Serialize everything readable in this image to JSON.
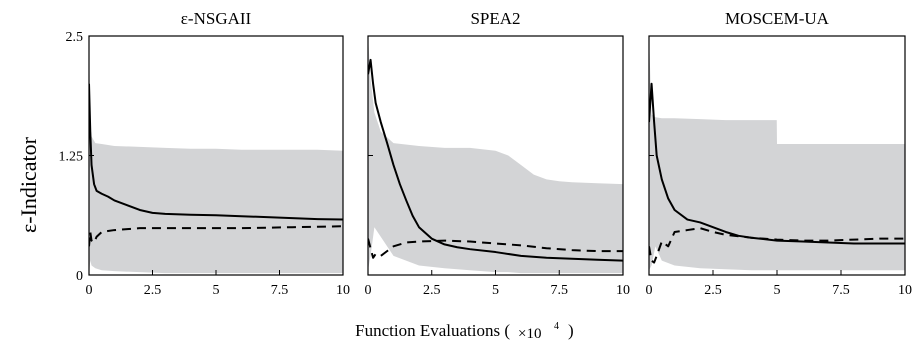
{
  "figure": {
    "ylabel": "ε-Indicator",
    "xlabel": "Function Evaluations (",
    "xlabel_multiplier": "×10",
    "xlabel_exponent": "4",
    "xlabel_close": ")"
  },
  "chart_data": [
    {
      "type": "line",
      "title": "ε-NSGAII",
      "xlim": [
        0,
        10
      ],
      "ylim": [
        0,
        2.5
      ],
      "xticks": [
        "0",
        "2.5",
        "5",
        "7.5",
        "10"
      ],
      "yticks": [
        "0",
        "1.25",
        "2.5"
      ],
      "series": [
        {
          "style": "solid",
          "x": [
            0,
            0.05,
            0.1,
            0.2,
            0.3,
            0.5,
            0.75,
            1,
            1.5,
            2,
            2.5,
            3,
            4,
            5,
            6,
            7,
            8,
            9,
            10
          ],
          "y": [
            2.0,
            1.5,
            1.15,
            0.95,
            0.88,
            0.85,
            0.82,
            0.78,
            0.73,
            0.68,
            0.65,
            0.64,
            0.63,
            0.625,
            0.615,
            0.605,
            0.595,
            0.585,
            0.58
          ]
        },
        {
          "style": "dashed",
          "x": [
            0,
            0.05,
            0.1,
            0.2,
            0.3,
            0.5,
            1,
            1.5,
            2,
            3,
            4,
            5,
            6,
            7,
            8,
            9,
            10
          ],
          "y": [
            0.3,
            0.45,
            0.36,
            0.34,
            0.4,
            0.45,
            0.47,
            0.48,
            0.49,
            0.49,
            0.49,
            0.49,
            0.49,
            0.495,
            0.5,
            0.505,
            0.51
          ]
        }
      ],
      "band": {
        "x": [
          0,
          0.05,
          0.1,
          0.25,
          0.5,
          1,
          2,
          3,
          4,
          5,
          6,
          7,
          8,
          9,
          10
        ],
        "upper": [
          2.5,
          1.6,
          1.45,
          1.38,
          1.37,
          1.35,
          1.34,
          1.33,
          1.32,
          1.32,
          1.31,
          1.31,
          1.31,
          1.31,
          1.3
        ],
        "lower": [
          0,
          0.15,
          0.1,
          0.07,
          0.05,
          0.04,
          0.03,
          0.02,
          0.02,
          0.02,
          0.02,
          0.02,
          0.02,
          0.02,
          0.02
        ]
      }
    },
    {
      "type": "line",
      "title": "SPEA2",
      "xlim": [
        0,
        10
      ],
      "ylim": [
        0,
        2.5
      ],
      "xticks": [
        "0",
        "2.5",
        "5",
        "7.5",
        "10"
      ],
      "yticks": [],
      "series": [
        {
          "style": "solid",
          "x": [
            0,
            0.1,
            0.2,
            0.3,
            0.5,
            0.75,
            1,
            1.25,
            1.5,
            1.75,
            2,
            2.5,
            3,
            3.5,
            4,
            5,
            6,
            7,
            8,
            9,
            10
          ],
          "y": [
            2.1,
            2.25,
            2.0,
            1.8,
            1.6,
            1.38,
            1.15,
            0.95,
            0.78,
            0.62,
            0.5,
            0.38,
            0.32,
            0.29,
            0.27,
            0.24,
            0.2,
            0.18,
            0.17,
            0.16,
            0.15
          ]
        },
        {
          "style": "dashed",
          "x": [
            0,
            0.1,
            0.2,
            0.3,
            0.5,
            1,
            1.5,
            2,
            3,
            4,
            5,
            6,
            7,
            8,
            9,
            10
          ],
          "y": [
            0.38,
            0.28,
            0.18,
            0.22,
            0.2,
            0.3,
            0.34,
            0.35,
            0.36,
            0.35,
            0.33,
            0.31,
            0.28,
            0.26,
            0.25,
            0.25
          ]
        }
      ],
      "band": {
        "x": [
          0,
          0.1,
          0.25,
          0.5,
          1,
          2,
          3,
          4,
          5,
          5.5,
          6,
          6.5,
          7,
          7.5,
          8,
          9,
          10
        ],
        "upper": [
          2.5,
          2.05,
          1.7,
          1.5,
          1.38,
          1.35,
          1.33,
          1.33,
          1.3,
          1.25,
          1.15,
          1.05,
          1.0,
          0.98,
          0.97,
          0.96,
          0.95
        ],
        "lower": [
          0.05,
          0.2,
          0.5,
          0.4,
          0.2,
          0.1,
          0.07,
          0.05,
          0.03,
          0.03,
          0.02,
          0.02,
          0.02,
          0.02,
          0.02,
          0.02,
          0.02
        ]
      }
    },
    {
      "type": "line",
      "title": "MOSCEM-UA",
      "xlim": [
        0,
        10
      ],
      "ylim": [
        0,
        2.5
      ],
      "xticks": [
        "0",
        "2.5",
        "5",
        "7.5",
        "10"
      ],
      "yticks": [],
      "series": [
        {
          "style": "solid",
          "x": [
            0,
            0.1,
            0.2,
            0.3,
            0.5,
            0.75,
            1,
            1.5,
            2,
            2.5,
            3,
            3.5,
            4,
            5,
            6,
            7,
            8,
            9,
            10
          ],
          "y": [
            1.6,
            2.0,
            1.6,
            1.25,
            1.0,
            0.8,
            0.68,
            0.58,
            0.55,
            0.5,
            0.45,
            0.41,
            0.39,
            0.36,
            0.35,
            0.34,
            0.33,
            0.33,
            0.33
          ]
        },
        {
          "style": "dashed",
          "x": [
            0,
            0.1,
            0.2,
            0.3,
            0.5,
            0.75,
            1,
            1.5,
            2,
            2.5,
            3,
            4,
            5,
            6,
            7,
            8,
            9,
            10
          ],
          "y": [
            0.3,
            0.15,
            0.13,
            0.2,
            0.35,
            0.3,
            0.45,
            0.47,
            0.49,
            0.45,
            0.42,
            0.39,
            0.37,
            0.36,
            0.36,
            0.37,
            0.38,
            0.38
          ]
        }
      ],
      "band": {
        "x": [
          0,
          0.1,
          0.25,
          0.5,
          1,
          2,
          3,
          4,
          4.99,
          5,
          6,
          7,
          8,
          9,
          10
        ],
        "upper": [
          2.5,
          1.68,
          1.65,
          1.64,
          1.64,
          1.63,
          1.62,
          1.62,
          1.62,
          1.37,
          1.37,
          1.37,
          1.37,
          1.37,
          1.37
        ],
        "lower": [
          0.05,
          0.1,
          0.3,
          0.15,
          0.1,
          0.07,
          0.06,
          0.05,
          0.05,
          0.05,
          0.05,
          0.05,
          0.05,
          0.05,
          0.05
        ]
      }
    }
  ]
}
